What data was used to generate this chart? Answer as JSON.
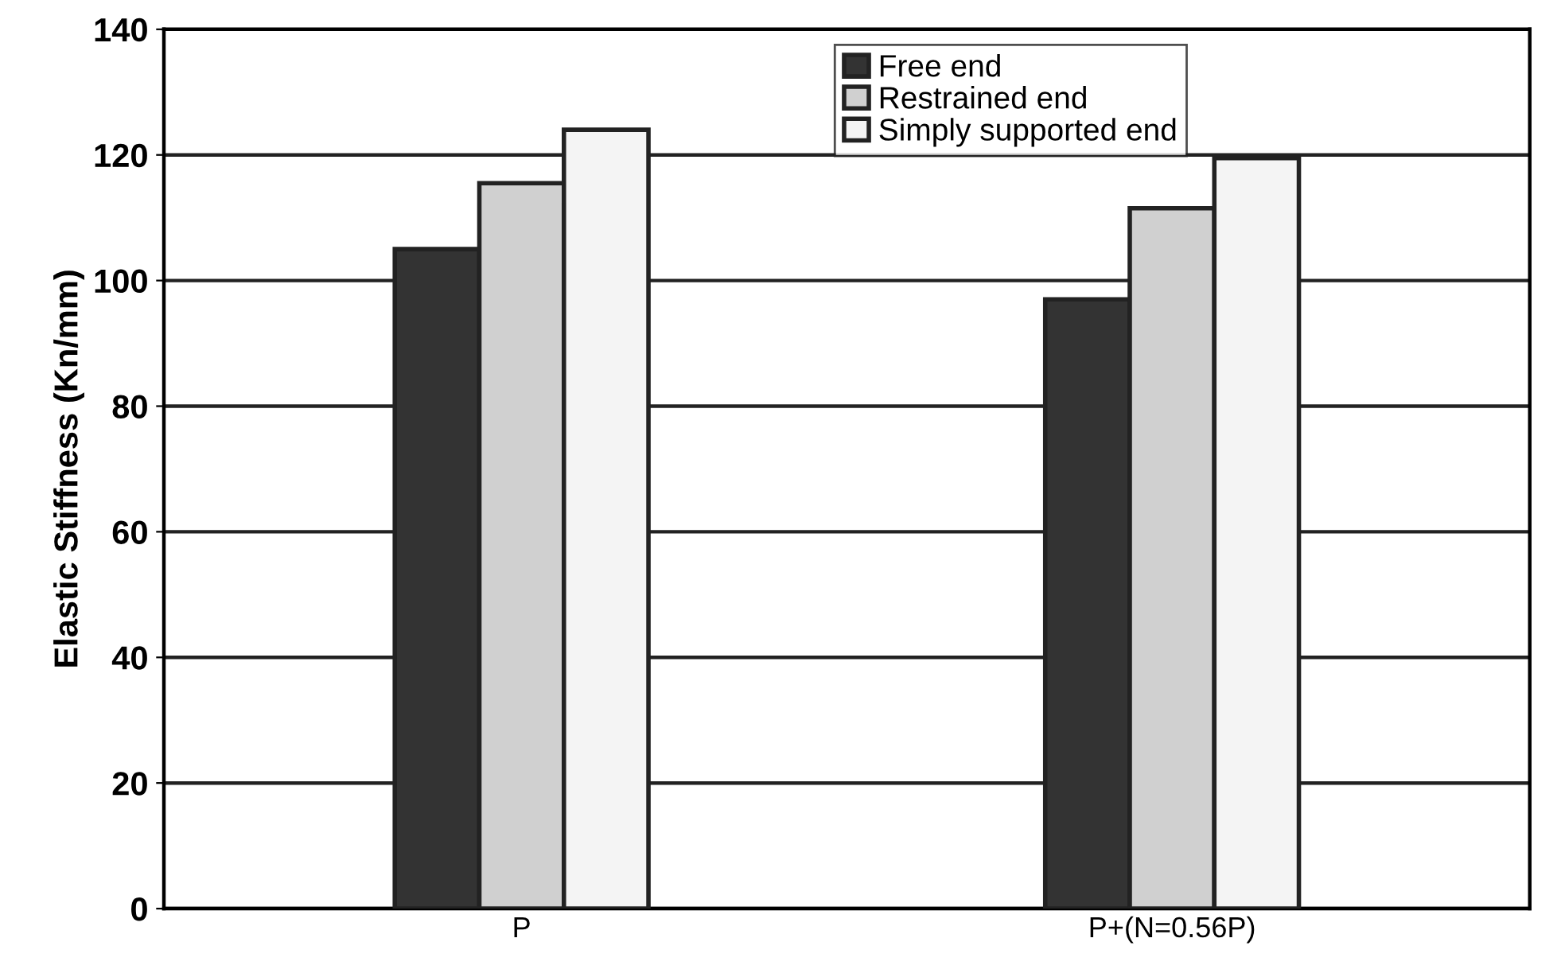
{
  "chart_data": {
    "type": "bar",
    "ylabel": "Elastic Stiffness (Kn/mm)",
    "categories": [
      "P",
      "P+(N=0.56P)"
    ],
    "series": [
      {
        "name": "Free end",
        "color": "#333333",
        "values": [
          105,
          97
        ]
      },
      {
        "name": "Restrained end",
        "color": "#d0d0d0",
        "values": [
          115.5,
          111.5
        ]
      },
      {
        "name": "Simply supported end",
        "color": "#f4f4f4",
        "values": [
          124,
          119.5
        ]
      }
    ],
    "ylim": [
      0,
      140
    ],
    "yticks": [
      0,
      20,
      40,
      60,
      80,
      100,
      120,
      140
    ],
    "grid": "y",
    "legend": "top"
  }
}
